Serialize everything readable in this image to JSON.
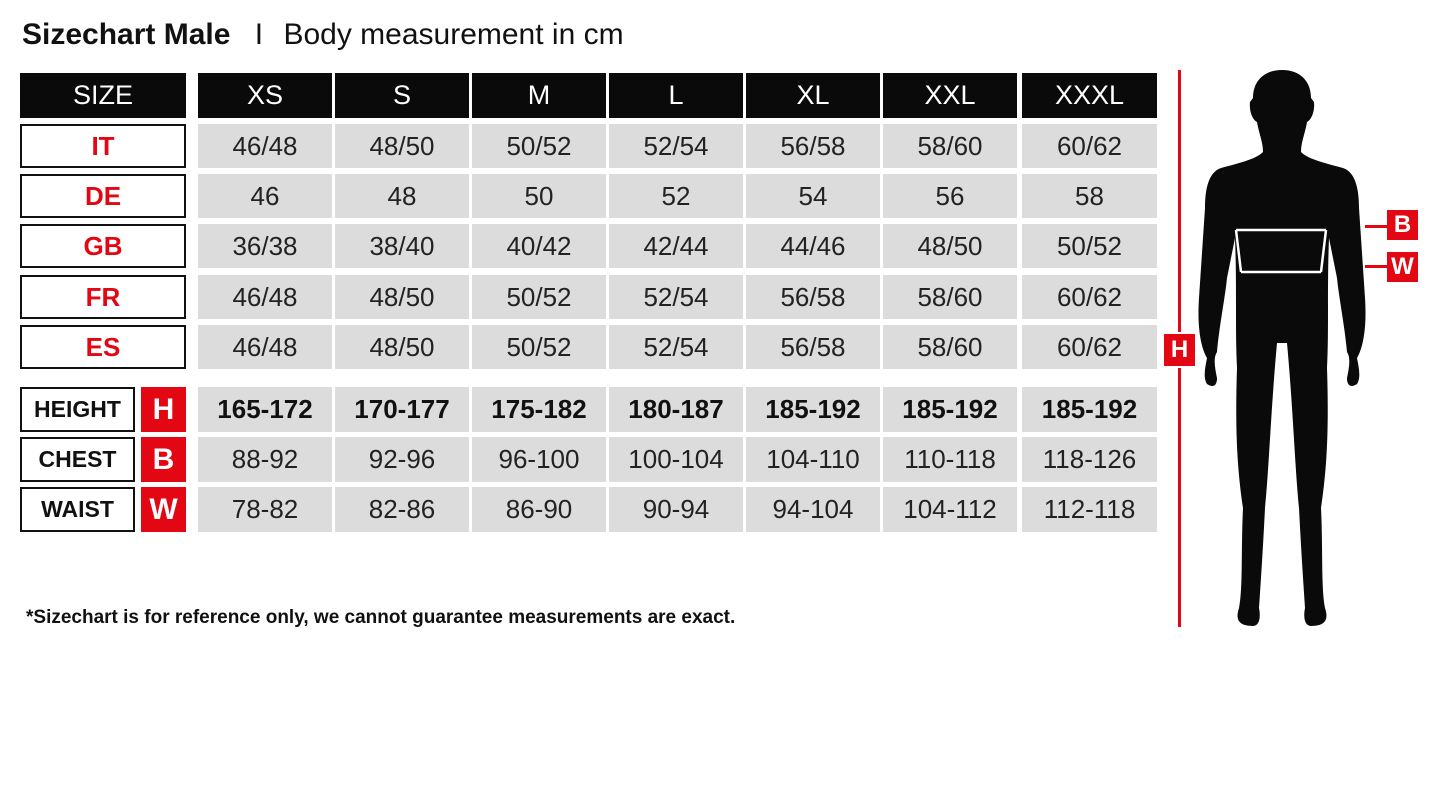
{
  "title": {
    "bold": "Sizechart Male",
    "separator": "I",
    "subtitle": "Body measurement in cm"
  },
  "header": {
    "first": "SIZE",
    "sizes": [
      "XS",
      "S",
      "M",
      "L",
      "XL",
      "XXL",
      "XXXL"
    ]
  },
  "conversions": [
    {
      "label": "IT",
      "values": [
        "46/48",
        "48/50",
        "50/52",
        "52/54",
        "56/58",
        "58/60",
        "60/62"
      ]
    },
    {
      "label": "DE",
      "values": [
        "46",
        "48",
        "50",
        "52",
        "54",
        "56",
        "58"
      ]
    },
    {
      "label": "GB",
      "values": [
        "36/38",
        "38/40",
        "40/42",
        "42/44",
        "44/46",
        "48/50",
        "50/52"
      ]
    },
    {
      "label": "FR",
      "values": [
        "46/48",
        "48/50",
        "50/52",
        "52/54",
        "56/58",
        "58/60",
        "60/62"
      ]
    },
    {
      "label": "ES",
      "values": [
        "46/48",
        "48/50",
        "50/52",
        "52/54",
        "56/58",
        "58/60",
        "60/62"
      ]
    }
  ],
  "measurements": [
    {
      "label": "HEIGHT",
      "code": "H",
      "bold": true,
      "values": [
        "165-172",
        "170-177",
        "175-182",
        "180-187",
        "185-192",
        "185-192",
        "185-192"
      ]
    },
    {
      "label": "CHEST",
      "code": "B",
      "bold": false,
      "values": [
        "88-92",
        "92-96",
        "96-100",
        "100-104",
        "104-110",
        "110-118",
        "118-126"
      ]
    },
    {
      "label": "WAIST",
      "code": "W",
      "bold": false,
      "values": [
        "78-82",
        "82-86",
        "86-90",
        "90-94",
        "94-104",
        "104-112",
        "112-118"
      ]
    }
  ],
  "figure": {
    "height_tag": "H",
    "chest_tag": "B",
    "waist_tag": "W"
  },
  "note": "*Sizechart is for reference only, we cannot guarantee measurements are exact.",
  "colors": {
    "accent": "#e30613",
    "header": "#0a0a0a",
    "cell": "#dcdcdc"
  }
}
